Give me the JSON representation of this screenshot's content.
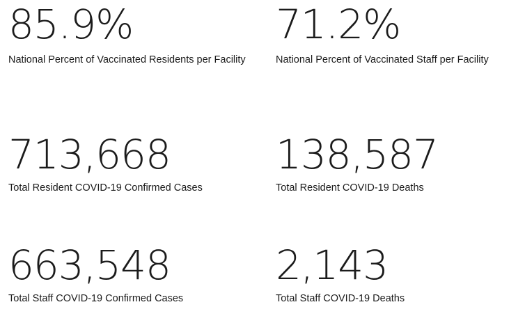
{
  "stats": [
    {
      "value": "85.9%",
      "label": "National Percent of Vaccinated Residents per Facility"
    },
    {
      "value": "71.2%",
      "label": "National Percent of Vaccinated Staff per Facility"
    },
    {
      "value": "713,668",
      "label": "Total Resident COVID-19 Confirmed Cases"
    },
    {
      "value": "138,587",
      "label": "Total Resident COVID-19 Deaths"
    },
    {
      "value": "663,548",
      "label": "Total Staff COVID-19 Confirmed Cases"
    },
    {
      "value": "2,143",
      "label": "Total Staff COVID-19 Deaths"
    }
  ]
}
